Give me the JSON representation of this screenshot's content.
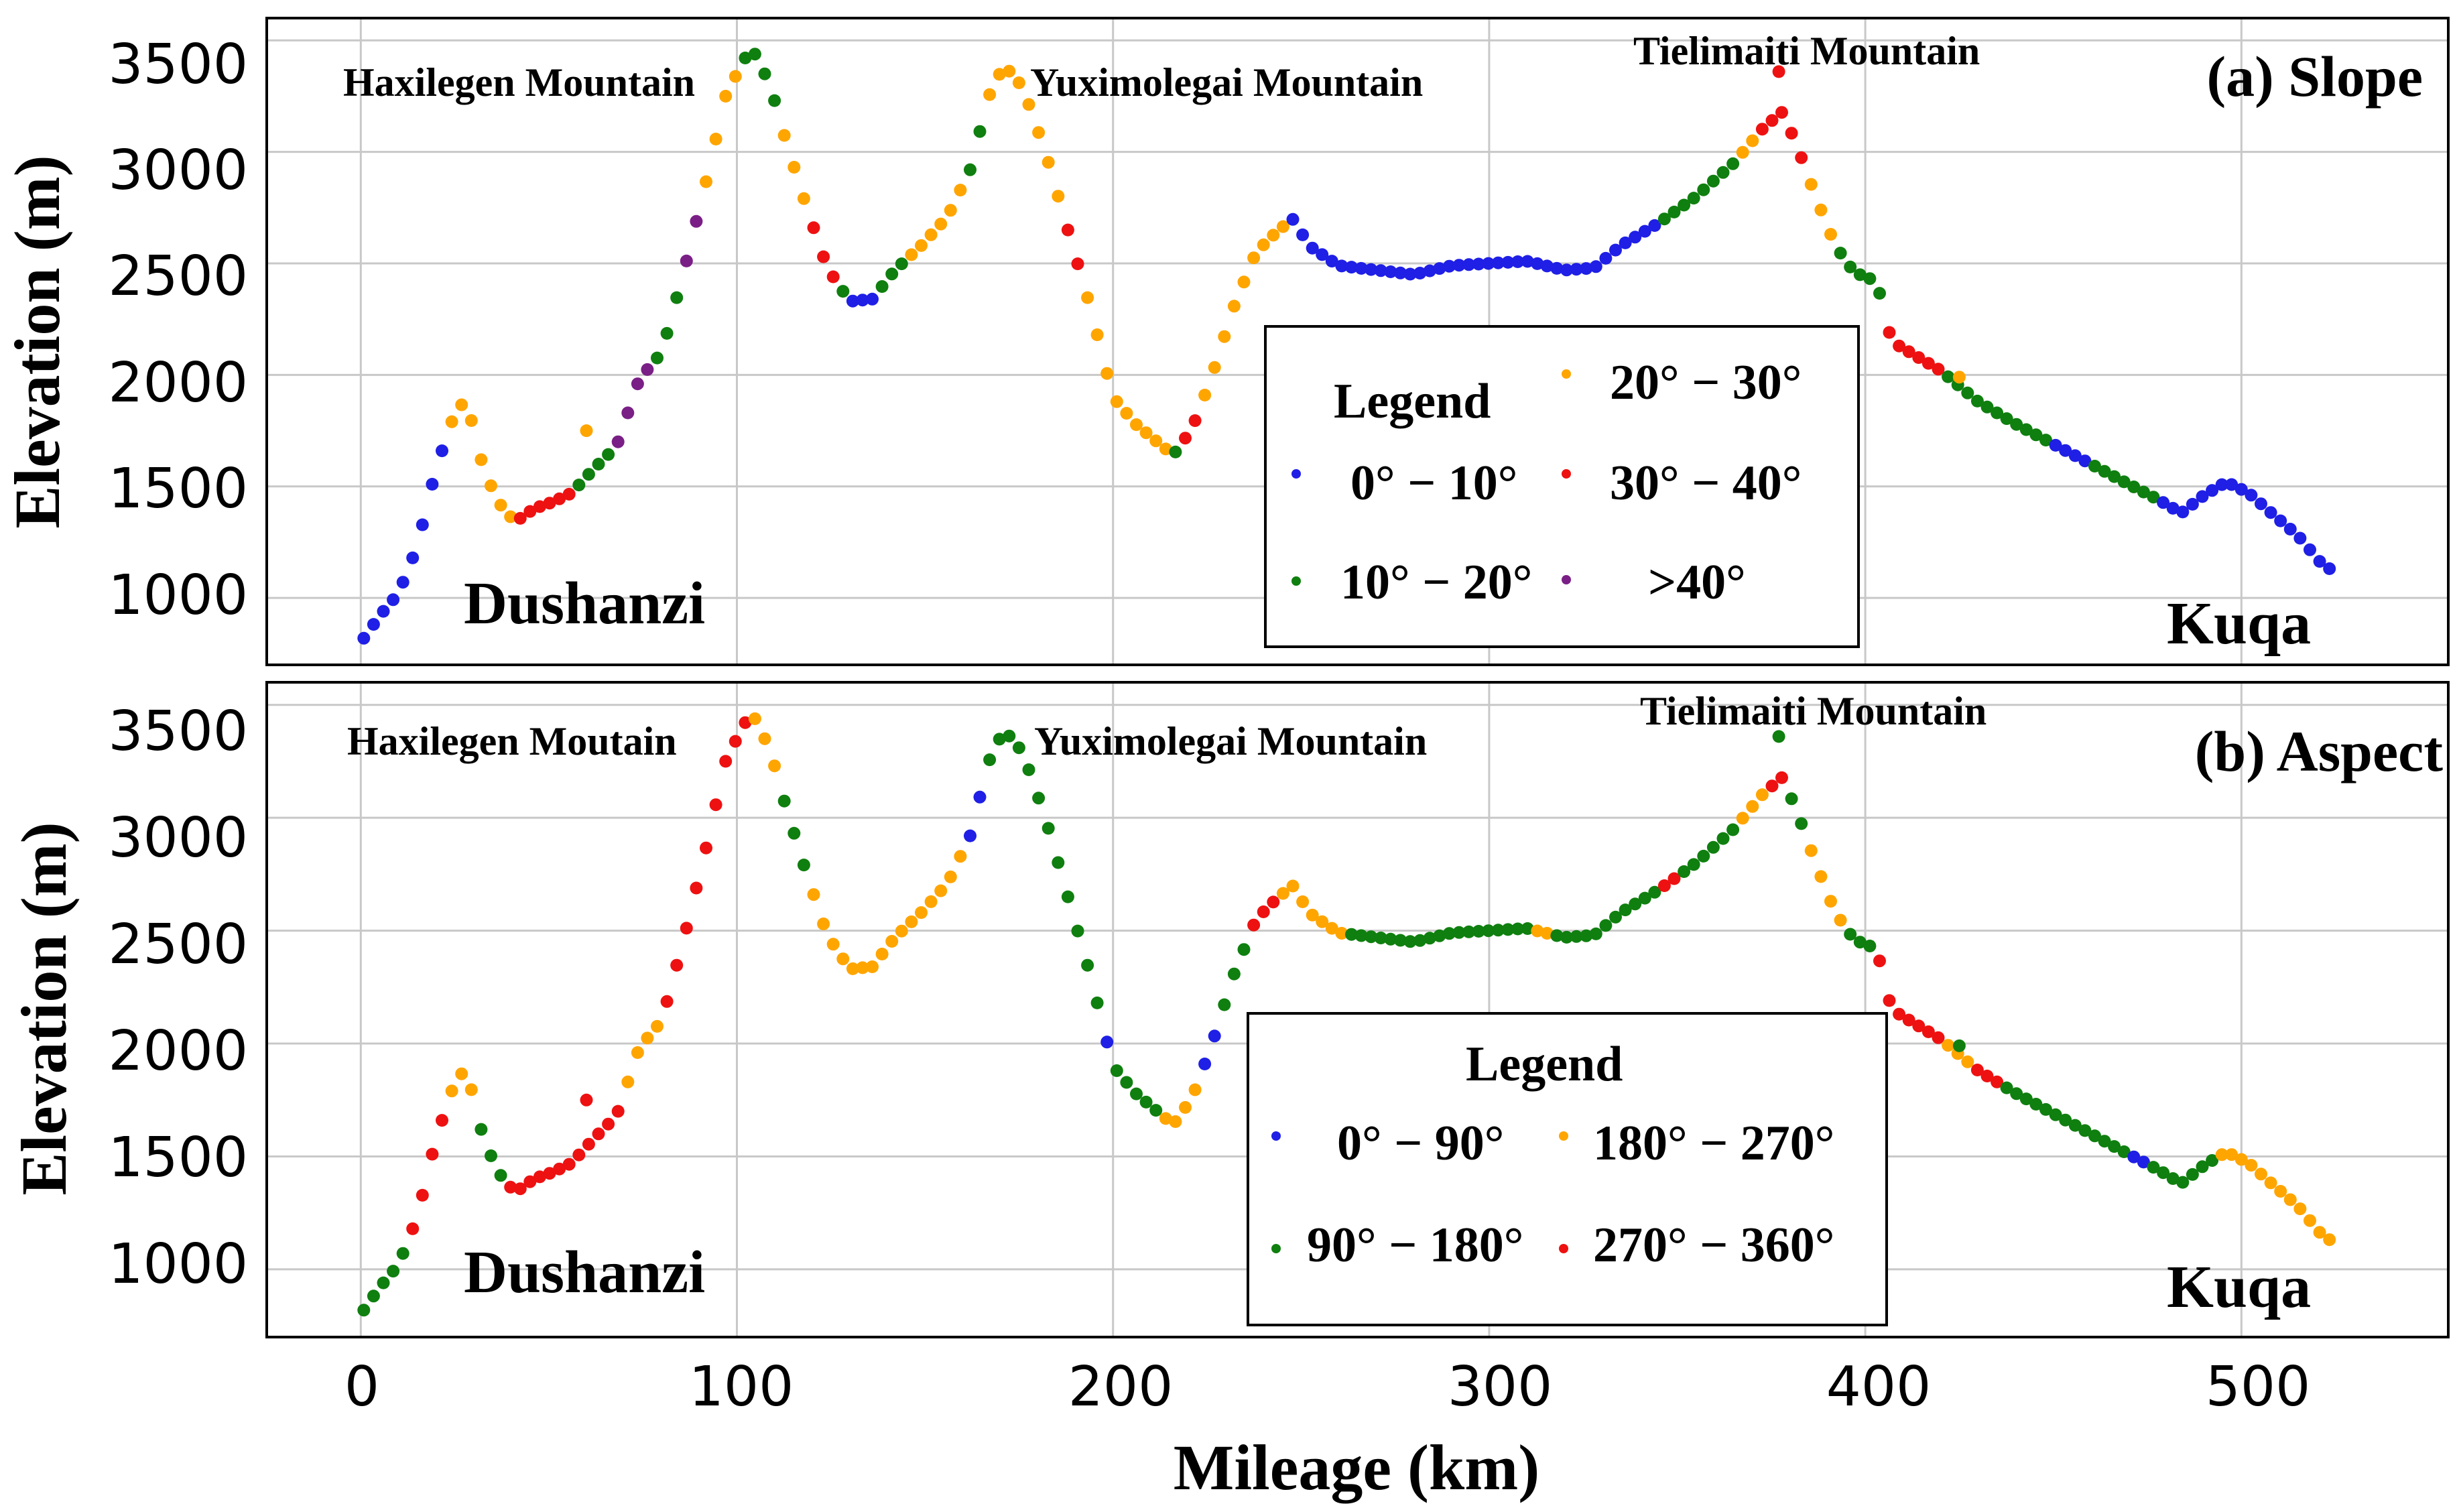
{
  "chart_data": [
    {
      "type": "scatter",
      "title": "(a) Slope",
      "xlabel": "Mileage (km)",
      "ylabel": "Elevation (m)",
      "xlim": [
        -25,
        555
      ],
      "ylim": [
        700,
        3600
      ],
      "xticks": [
        0,
        100,
        200,
        300,
        400,
        500
      ],
      "yticks": [
        1000,
        1500,
        2000,
        2500,
        3000,
        3500
      ],
      "grid": true,
      "annotations": [
        "Haxilegen Mountain",
        "Yuximolegai Mountain",
        "Tielimaiti Mountain",
        "Dushanzi",
        "Kuqa"
      ],
      "legend": {
        "title": "Legend",
        "entries": [
          {
            "label": "0° − 10°",
            "color": "#1f1fe6"
          },
          {
            "label": "20° − 30°",
            "color": "#ffa500"
          },
          {
            "label": "30° − 40°",
            "color": "#ee1111"
          },
          {
            "label": "10° − 20°",
            "color": "#0f7f0f"
          },
          {
            "label": ">40°",
            "color": "#7a1f86"
          }
        ]
      },
      "profile": [
        [
          0,
          800
        ],
        [
          5,
          920
        ],
        [
          10,
          1020
        ],
        [
          15,
          1230
        ],
        [
          20,
          1580
        ],
        [
          25,
          1830
        ],
        [
          28,
          1890
        ],
        [
          32,
          1620
        ],
        [
          36,
          1440
        ],
        [
          41,
          1340
        ],
        [
          46,
          1400
        ],
        [
          51,
          1430
        ],
        [
          56,
          1470
        ],
        [
          62,
          1580
        ],
        [
          68,
          1680
        ],
        [
          74,
          1980
        ],
        [
          80,
          2100
        ],
        [
          86,
          2470
        ],
        [
          92,
          2880
        ],
        [
          97,
          3250
        ],
        [
          102,
          3420
        ],
        [
          105,
          3440
        ],
        [
          109,
          3290
        ],
        [
          113,
          3050
        ],
        [
          118,
          2780
        ],
        [
          124,
          2480
        ],
        [
          130,
          2330
        ],
        [
          136,
          2340
        ],
        [
          142,
          2470
        ],
        [
          149,
          2580
        ],
        [
          156,
          2710
        ],
        [
          162,
          2920
        ],
        [
          167,
          3250
        ],
        [
          171,
          3390
        ],
        [
          176,
          3290
        ],
        [
          182,
          3000
        ],
        [
          188,
          2650
        ],
        [
          194,
          2300
        ],
        [
          200,
          1900
        ],
        [
          206,
          1780
        ],
        [
          211,
          1710
        ],
        [
          216,
          1640
        ],
        [
          221,
          1760
        ],
        [
          226,
          1980
        ],
        [
          232,
          2300
        ],
        [
          238,
          2550
        ],
        [
          244,
          2650
        ],
        [
          248,
          2700
        ],
        [
          252,
          2580
        ],
        [
          260,
          2490
        ],
        [
          270,
          2470
        ],
        [
          280,
          2450
        ],
        [
          290,
          2490
        ],
        [
          300,
          2500
        ],
        [
          310,
          2510
        ],
        [
          320,
          2470
        ],
        [
          328,
          2480
        ],
        [
          335,
          2580
        ],
        [
          345,
          2680
        ],
        [
          355,
          2800
        ],
        [
          365,
          2950
        ],
        [
          373,
          3110
        ],
        [
          378,
          3180
        ],
        [
          382,
          3020
        ],
        [
          387,
          2790
        ],
        [
          392,
          2580
        ],
        [
          397,
          2460
        ],
        [
          400,
          2440
        ],
        [
          403,
          2420
        ],
        [
          407,
          2150
        ],
        [
          413,
          2090
        ],
        [
          420,
          2020
        ],
        [
          430,
          1880
        ],
        [
          440,
          1780
        ],
        [
          450,
          1690
        ],
        [
          460,
          1600
        ],
        [
          470,
          1510
        ],
        [
          478,
          1440
        ],
        [
          484,
          1380
        ],
        [
          490,
          1460
        ],
        [
          496,
          1520
        ],
        [
          502,
          1470
        ],
        [
          508,
          1380
        ],
        [
          515,
          1280
        ],
        [
          521,
          1160
        ],
        [
          526,
          1100
        ]
      ],
      "outliers": [
        [
          377,
          3360,
          "red"
        ],
        [
          60,
          1750,
          "orange"
        ],
        [
          425,
          1990,
          "orange"
        ]
      ],
      "segments": [
        {
          "range": [
            0,
            22
          ],
          "category": "0-10"
        },
        {
          "range": [
            22,
            40
          ],
          "category": "20-30"
        },
        {
          "range": [
            40,
            56
          ],
          "category": "30-40"
        },
        {
          "range": [
            56,
            66
          ],
          "category": "10-20"
        },
        {
          "range": [
            66,
            77
          ],
          "category": ">40"
        },
        {
          "range": [
            77,
            86
          ],
          "category": "10-20"
        },
        {
          "range": [
            86,
            91
          ],
          "category": ">40"
        },
        {
          "range": [
            91,
            100
          ],
          "category": "20-30"
        },
        {
          "range": [
            100,
            110
          ],
          "category": "10-20"
        },
        {
          "range": [
            110,
            120
          ],
          "category": "20-30"
        },
        {
          "range": [
            120,
            126
          ],
          "category": "30-40"
        },
        {
          "range": [
            126,
            130
          ],
          "category": "10-20"
        },
        {
          "range": [
            130,
            137
          ],
          "category": "0-10"
        },
        {
          "range": [
            137,
            146
          ],
          "category": "10-20"
        },
        {
          "range": [
            146,
            160
          ],
          "category": "20-30"
        },
        {
          "range": [
            160,
            166
          ],
          "category": "10-20"
        },
        {
          "range": [
            166,
            186
          ],
          "category": "20-30"
        },
        {
          "range": [
            186,
            191
          ],
          "category": "30-40"
        },
        {
          "range": [
            191,
            216
          ],
          "category": "20-30"
        },
        {
          "range": [
            216,
            219
          ],
          "category": "10-20"
        },
        {
          "range": [
            219,
            223
          ],
          "category": "30-40"
        },
        {
          "range": [
            223,
            246
          ],
          "category": "20-30"
        },
        {
          "range": [
            246,
            345
          ],
          "category": "0-10"
        },
        {
          "range": [
            345,
            365
          ],
          "category": "10-20"
        },
        {
          "range": [
            365,
            372
          ],
          "category": "20-30"
        },
        {
          "range": [
            372,
            385
          ],
          "category": "30-40"
        },
        {
          "range": [
            385,
            392
          ],
          "category": "20-30"
        },
        {
          "range": [
            392,
            405
          ],
          "category": "10-20"
        },
        {
          "range": [
            405,
            420
          ],
          "category": "30-40"
        },
        {
          "range": [
            420,
            450
          ],
          "category": "10-20"
        },
        {
          "range": [
            450,
            460
          ],
          "category": "0-10"
        },
        {
          "range": [
            460,
            478
          ],
          "category": "10-20"
        },
        {
          "range": [
            478,
            526
          ],
          "category": "0-10"
        }
      ]
    },
    {
      "type": "scatter",
      "title": "(b) Aspect",
      "xlabel": "Mileage (km)",
      "ylabel": "Elevation (m)",
      "xlim": [
        -25,
        555
      ],
      "ylim": [
        700,
        3600
      ],
      "xticks": [
        0,
        100,
        200,
        300,
        400,
        500
      ],
      "yticks": [
        1000,
        1500,
        2000,
        2500,
        3000,
        3500
      ],
      "grid": true,
      "annotations": [
        "Haxilegen Moutain",
        "Yuximolegai Mountain",
        "Tielimaiti Mountain",
        "Dushanzi",
        "Kuqa"
      ],
      "legend": {
        "title": "Legend",
        "entries": [
          {
            "label": "0° − 90°",
            "color": "#1f1fe6"
          },
          {
            "label": "180° − 270°",
            "color": "#ffa500"
          },
          {
            "label": "90° − 180°",
            "color": "#0f7f0f"
          },
          {
            "label": "270° − 360°",
            "color": "#ee1111"
          }
        ]
      },
      "outliers": [
        [
          377,
          3360,
          "green"
        ],
        [
          60,
          1750,
          "red"
        ],
        [
          425,
          1990,
          "green"
        ]
      ],
      "segments": [
        {
          "range": [
            0,
            12
          ],
          "category": "90-180"
        },
        {
          "range": [
            12,
            24
          ],
          "category": "270-360"
        },
        {
          "range": [
            24,
            30
          ],
          "category": "180-270"
        },
        {
          "range": [
            30,
            38
          ],
          "category": "90-180"
        },
        {
          "range": [
            38,
            70
          ],
          "category": "270-360"
        },
        {
          "range": [
            70,
            80
          ],
          "category": "180-270"
        },
        {
          "range": [
            80,
            103
          ],
          "category": "270-360"
        },
        {
          "range": [
            103,
            110
          ],
          "category": "180-270"
        },
        {
          "range": [
            110,
            120
          ],
          "category": "90-180"
        },
        {
          "range": [
            120,
            160
          ],
          "category": "180-270"
        },
        {
          "range": [
            160,
            167
          ],
          "category": "0-90"
        },
        {
          "range": [
            167,
            196
          ],
          "category": "90-180"
        },
        {
          "range": [
            196,
            199
          ],
          "category": "0-90"
        },
        {
          "range": [
            199,
            213
          ],
          "category": "90-180"
        },
        {
          "range": [
            213,
            224
          ],
          "category": "180-270"
        },
        {
          "range": [
            224,
            227
          ],
          "category": "0-90"
        },
        {
          "range": [
            227,
            237
          ],
          "category": "90-180"
        },
        {
          "range": [
            237,
            244
          ],
          "category": "270-360"
        },
        {
          "range": [
            244,
            262
          ],
          "category": "180-270"
        },
        {
          "range": [
            262,
            312
          ],
          "category": "90-180"
        },
        {
          "range": [
            312,
            318
          ],
          "category": "180-270"
        },
        {
          "range": [
            318,
            345
          ],
          "category": "90-180"
        },
        {
          "range": [
            345,
            350
          ],
          "category": "270-360"
        },
        {
          "range": [
            350,
            365
          ],
          "category": "90-180"
        },
        {
          "range": [
            365,
            373
          ],
          "category": "180-270"
        },
        {
          "range": [
            373,
            378
          ],
          "category": "270-360"
        },
        {
          "range": [
            378,
            385
          ],
          "category": "90-180"
        },
        {
          "range": [
            385,
            395
          ],
          "category": "180-270"
        },
        {
          "range": [
            395,
            403
          ],
          "category": "90-180"
        },
        {
          "range": [
            403,
            420
          ],
          "category": "270-360"
        },
        {
          "range": [
            420,
            428
          ],
          "category": "180-270"
        },
        {
          "range": [
            428,
            436
          ],
          "category": "270-360"
        },
        {
          "range": [
            436,
            470
          ],
          "category": "90-180"
        },
        {
          "range": [
            470,
            476
          ],
          "category": "0-90"
        },
        {
          "range": [
            476,
            493
          ],
          "category": "90-180"
        },
        {
          "range": [
            493,
            526
          ],
          "category": "180-270"
        }
      ]
    }
  ],
  "slope_panel": {
    "title": "(a) Slope",
    "ylabel": "Elevation (m)",
    "mountain_1": "Haxilegen Mountain",
    "mountain_2": "Yuximolegai Mountain",
    "mountain_3": "Tielimaiti Mountain",
    "start_place": "Dushanzi",
    "end_place": "Kuqa",
    "legend_title": "Legend",
    "legend_1": "0° − 10°",
    "legend_2": "20° − 30°",
    "legend_3": "30° − 40°",
    "legend_4": "10° − 20°",
    "legend_5": ">40°"
  },
  "aspect_panel": {
    "title": "(b) Aspect",
    "ylabel": "Elevation (m)",
    "mountain_1": "Haxilegen Moutain",
    "mountain_2": "Yuximolegai Mountain",
    "mountain_3": "Tielimaiti Mountain",
    "start_place": "Dushanzi",
    "end_place": "Kuqa",
    "legend_title": "Legend",
    "legend_1": "0° − 90°",
    "legend_2": "180° − 270°",
    "legend_3": "90° − 180°",
    "legend_4": "270° − 360°"
  },
  "xlabel": "Mileage (km)",
  "ytick_labels": [
    "3500",
    "3000",
    "2500",
    "2000",
    "1500",
    "1000"
  ],
  "xtick_labels": [
    "0",
    "100",
    "200",
    "300",
    "400",
    "500"
  ],
  "colors": {
    "blue": "#1f1fe6",
    "green": "#0f7f0f",
    "orange": "#ffa500",
    "red": "#ee1111",
    "purple": "#7a1f86"
  }
}
